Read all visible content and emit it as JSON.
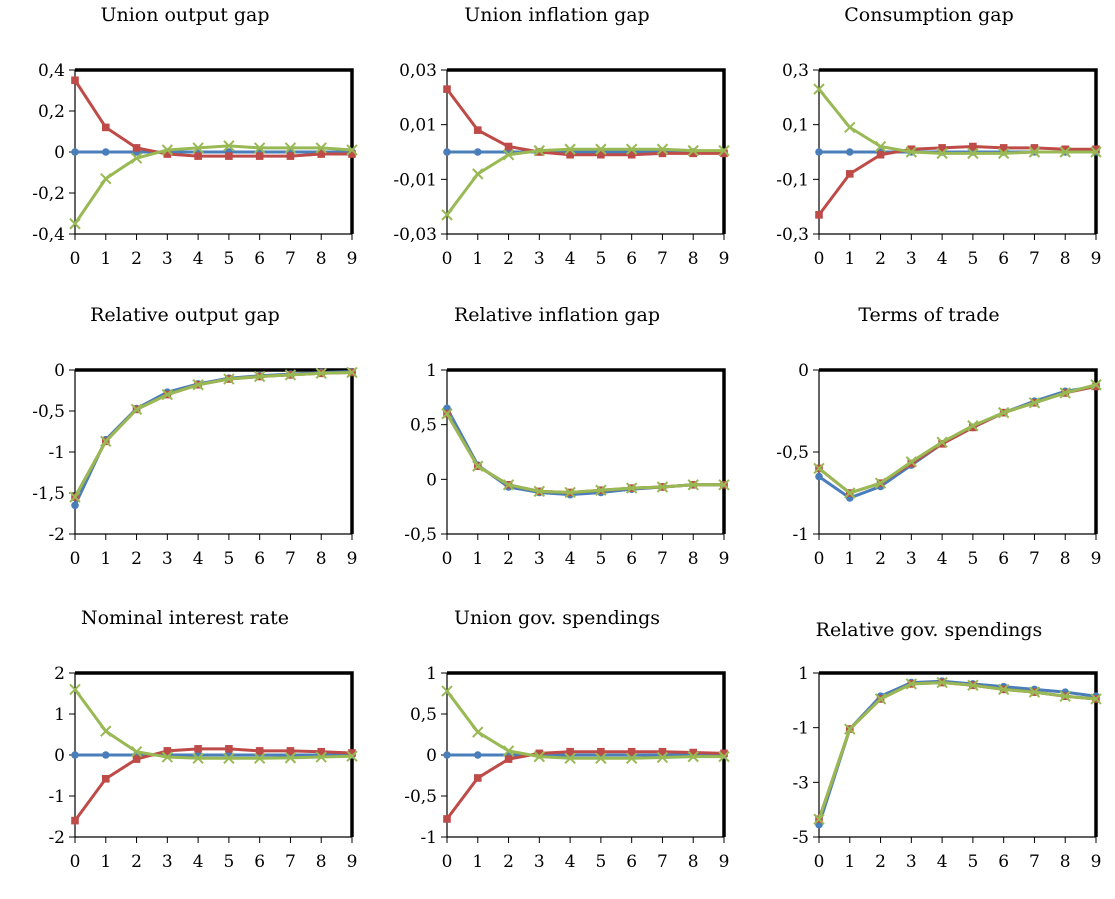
{
  "colors": {
    "blue": "#4a7ebb",
    "red": "#be4b48",
    "green": "#98b954"
  },
  "chart_data": [
    {
      "type": "line",
      "title": "Union output gap",
      "x": [
        0,
        1,
        2,
        3,
        4,
        5,
        6,
        7,
        8,
        9
      ],
      "ylim": [
        -0.4,
        0.4
      ],
      "yticks": [
        -0.4,
        -0.2,
        0,
        0.2,
        0.4
      ],
      "ytick_labels": [
        "-0,4",
        "-0,2",
        "0",
        "0,2",
        "0,4"
      ],
      "series": [
        {
          "color": "blue",
          "marker": "circle",
          "values": [
            0,
            0,
            0,
            0,
            0,
            0,
            0,
            0,
            0,
            0
          ]
        },
        {
          "color": "red",
          "marker": "square",
          "values": [
            0.35,
            0.12,
            0.02,
            -0.01,
            -0.02,
            -0.02,
            -0.02,
            -0.02,
            -0.01,
            -0.01
          ]
        },
        {
          "color": "green",
          "marker": "x",
          "values": [
            -0.35,
            -0.13,
            -0.03,
            0.01,
            0.02,
            0.03,
            0.02,
            0.02,
            0.02,
            0.01
          ]
        }
      ]
    },
    {
      "type": "line",
      "title": "Union inflation gap",
      "x": [
        0,
        1,
        2,
        3,
        4,
        5,
        6,
        7,
        8,
        9
      ],
      "ylim": [
        -0.03,
        0.03
      ],
      "yticks": [
        -0.03,
        -0.01,
        0.01,
        0.03
      ],
      "ytick_labels": [
        "-0,03",
        "-0,01",
        "0,01",
        "0,03"
      ],
      "series": [
        {
          "color": "blue",
          "marker": "circle",
          "values": [
            0,
            0,
            0,
            0,
            0,
            0,
            0,
            0,
            0,
            0
          ]
        },
        {
          "color": "red",
          "marker": "square",
          "values": [
            0.023,
            0.008,
            0.002,
            0,
            -0.001,
            -0.001,
            -0.001,
            -0.0005,
            -0.0005,
            -0.0005
          ]
        },
        {
          "color": "green",
          "marker": "x",
          "values": [
            -0.023,
            -0.008,
            -0.001,
            0.0005,
            0.001,
            0.001,
            0.001,
            0.001,
            0.0005,
            0.0005
          ]
        }
      ]
    },
    {
      "type": "line",
      "title": "Consumption gap",
      "x": [
        0,
        1,
        2,
        3,
        4,
        5,
        6,
        7,
        8,
        9
      ],
      "ylim": [
        -0.3,
        0.3
      ],
      "yticks": [
        -0.3,
        -0.1,
        0.1,
        0.3
      ],
      "ytick_labels": [
        "-0,3",
        "-0,1",
        "0,1",
        "0,3"
      ],
      "series": [
        {
          "color": "blue",
          "marker": "circle",
          "values": [
            0,
            0,
            0,
            0,
            0,
            0,
            0,
            0,
            0,
            0
          ]
        },
        {
          "color": "red",
          "marker": "square",
          "values": [
            -0.23,
            -0.08,
            -0.01,
            0.01,
            0.015,
            0.02,
            0.015,
            0.015,
            0.01,
            0.01
          ]
        },
        {
          "color": "green",
          "marker": "x",
          "values": [
            0.23,
            0.09,
            0.02,
            0,
            -0.005,
            -0.005,
            -0.005,
            0,
            0,
            0
          ]
        }
      ]
    },
    {
      "type": "line",
      "title": "Relative output gap",
      "x": [
        0,
        1,
        2,
        3,
        4,
        5,
        6,
        7,
        8,
        9
      ],
      "ylim": [
        -2,
        0
      ],
      "yticks": [
        -2,
        -1.5,
        -1,
        -0.5,
        0
      ],
      "ytick_labels": [
        "-2",
        "-1,5",
        "-1",
        "-0,5",
        "0"
      ],
      "series": [
        {
          "color": "blue",
          "marker": "circle",
          "values": [
            -1.65,
            -0.85,
            -0.47,
            -0.27,
            -0.17,
            -0.1,
            -0.07,
            -0.05,
            -0.03,
            -0.02
          ]
        },
        {
          "color": "red",
          "marker": "square",
          "values": [
            -1.55,
            -0.87,
            -0.48,
            -0.3,
            -0.18,
            -0.11,
            -0.08,
            -0.06,
            -0.04,
            -0.03
          ]
        },
        {
          "color": "green",
          "marker": "x",
          "values": [
            -1.55,
            -0.87,
            -0.48,
            -0.3,
            -0.18,
            -0.11,
            -0.08,
            -0.06,
            -0.04,
            -0.03
          ]
        }
      ]
    },
    {
      "type": "line",
      "title": "Relative inflation gap",
      "x": [
        0,
        1,
        2,
        3,
        4,
        5,
        6,
        7,
        8,
        9
      ],
      "ylim": [
        -0.5,
        1
      ],
      "yticks": [
        -0.5,
        0,
        0.5,
        1
      ],
      "ytick_labels": [
        "-0,5",
        "0",
        "0,5",
        "1"
      ],
      "series": [
        {
          "color": "blue",
          "marker": "circle",
          "values": [
            0.65,
            0.13,
            -0.07,
            -0.12,
            -0.14,
            -0.12,
            -0.09,
            -0.07,
            -0.05,
            -0.05
          ]
        },
        {
          "color": "red",
          "marker": "square",
          "values": [
            0.6,
            0.12,
            -0.05,
            -0.11,
            -0.12,
            -0.1,
            -0.08,
            -0.07,
            -0.05,
            -0.05
          ]
        },
        {
          "color": "green",
          "marker": "x",
          "values": [
            0.6,
            0.12,
            -0.05,
            -0.11,
            -0.12,
            -0.1,
            -0.08,
            -0.07,
            -0.05,
            -0.05
          ]
        }
      ]
    },
    {
      "type": "line",
      "title": "Terms of trade",
      "x": [
        0,
        1,
        2,
        3,
        4,
        5,
        6,
        7,
        8,
        9
      ],
      "ylim": [
        -1,
        0
      ],
      "yticks": [
        -1,
        -0.5,
        0
      ],
      "ytick_labels": [
        "-1",
        "-0,5",
        "0"
      ],
      "series": [
        {
          "color": "blue",
          "marker": "circle",
          "values": [
            -0.65,
            -0.78,
            -0.71,
            -0.58,
            -0.45,
            -0.35,
            -0.26,
            -0.19,
            -0.13,
            -0.1
          ]
        },
        {
          "color": "red",
          "marker": "square",
          "values": [
            -0.6,
            -0.75,
            -0.69,
            -0.57,
            -0.45,
            -0.35,
            -0.26,
            -0.2,
            -0.14,
            -0.1
          ]
        },
        {
          "color": "green",
          "marker": "x",
          "values": [
            -0.6,
            -0.75,
            -0.69,
            -0.56,
            -0.44,
            -0.34,
            -0.26,
            -0.2,
            -0.14,
            -0.09
          ]
        }
      ]
    },
    {
      "type": "line",
      "title": "Nominal interest rate",
      "x": [
        0,
        1,
        2,
        3,
        4,
        5,
        6,
        7,
        8,
        9
      ],
      "ylim": [
        -2,
        2
      ],
      "yticks": [
        -2,
        -1,
        0,
        1,
        2
      ],
      "ytick_labels": [
        "-2",
        "-1",
        "0",
        "1",
        "2"
      ],
      "series": [
        {
          "color": "blue",
          "marker": "circle",
          "values": [
            0,
            0,
            0,
            0,
            0,
            0,
            0,
            0,
            0,
            0
          ]
        },
        {
          "color": "red",
          "marker": "square",
          "values": [
            -1.6,
            -0.58,
            -0.1,
            0.1,
            0.15,
            0.15,
            0.1,
            0.1,
            0.08,
            0.05
          ]
        },
        {
          "color": "green",
          "marker": "x",
          "values": [
            1.6,
            0.58,
            0.08,
            -0.05,
            -0.08,
            -0.08,
            -0.08,
            -0.07,
            -0.05,
            -0.03
          ]
        }
      ]
    },
    {
      "type": "line",
      "title": "Union gov. spendings",
      "x": [
        0,
        1,
        2,
        3,
        4,
        5,
        6,
        7,
        8,
        9
      ],
      "ylim": [
        -1,
        1
      ],
      "yticks": [
        -1,
        -0.5,
        0,
        0.5,
        1
      ],
      "ytick_labels": [
        "-1",
        "-0,5",
        "0",
        "0,5",
        "1"
      ],
      "series": [
        {
          "color": "blue",
          "marker": "circle",
          "values": [
            0,
            0,
            0,
            0,
            0,
            0,
            0,
            0,
            0,
            0
          ]
        },
        {
          "color": "red",
          "marker": "square",
          "values": [
            -0.78,
            -0.28,
            -0.05,
            0.02,
            0.04,
            0.04,
            0.04,
            0.04,
            0.03,
            0.02
          ]
        },
        {
          "color": "green",
          "marker": "x",
          "values": [
            0.78,
            0.28,
            0.05,
            -0.02,
            -0.04,
            -0.04,
            -0.04,
            -0.03,
            -0.02,
            -0.02
          ]
        }
      ]
    },
    {
      "type": "line",
      "title": "Relative gov. spendings",
      "x": [
        0,
        1,
        2,
        3,
        4,
        5,
        6,
        7,
        8,
        9
      ],
      "ylim": [
        -5,
        1
      ],
      "yticks": [
        -5,
        -3,
        -1,
        1
      ],
      "ytick_labels": [
        "-5",
        "-3",
        "-1",
        "1"
      ],
      "series": [
        {
          "color": "blue",
          "marker": "circle",
          "values": [
            -4.55,
            -1.05,
            0.15,
            0.65,
            0.7,
            0.6,
            0.5,
            0.4,
            0.3,
            0.15
          ]
        },
        {
          "color": "red",
          "marker": "square",
          "values": [
            -4.35,
            -1.05,
            0.05,
            0.6,
            0.65,
            0.55,
            0.4,
            0.3,
            0.15,
            0.05
          ]
        },
        {
          "color": "green",
          "marker": "x",
          "values": [
            -4.35,
            -1.05,
            0.05,
            0.6,
            0.65,
            0.55,
            0.4,
            0.3,
            0.15,
            0.05
          ]
        }
      ]
    }
  ]
}
